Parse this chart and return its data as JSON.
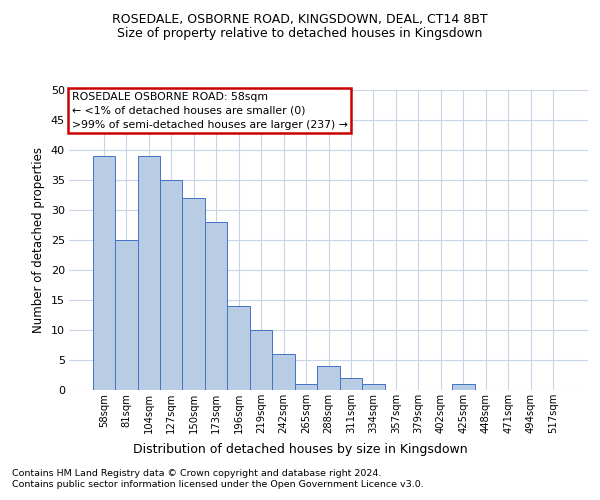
{
  "title1": "ROSEDALE, OSBORNE ROAD, KINGSDOWN, DEAL, CT14 8BT",
  "title2": "Size of property relative to detached houses in Kingsdown",
  "xlabel": "Distribution of detached houses by size in Kingsdown",
  "ylabel": "Number of detached properties",
  "categories": [
    "58sqm",
    "81sqm",
    "104sqm",
    "127sqm",
    "150sqm",
    "173sqm",
    "196sqm",
    "219sqm",
    "242sqm",
    "265sqm",
    "288sqm",
    "311sqm",
    "334sqm",
    "357sqm",
    "379sqm",
    "402sqm",
    "425sqm",
    "448sqm",
    "471sqm",
    "494sqm",
    "517sqm"
  ],
  "values": [
    39,
    25,
    39,
    35,
    32,
    28,
    14,
    10,
    6,
    1,
    4,
    2,
    1,
    0,
    0,
    0,
    1,
    0,
    0,
    0,
    0
  ],
  "bar_color": "#b8cce4",
  "bar_edge_color": "#4472c4",
  "annotation_title": "ROSEDALE OSBORNE ROAD: 58sqm",
  "annotation_line1": "← <1% of detached houses are smaller (0)",
  "annotation_line2": ">99% of semi-detached houses are larger (237) →",
  "annotation_box_color": "#cc0000",
  "ylim": [
    0,
    50
  ],
  "yticks": [
    0,
    5,
    10,
    15,
    20,
    25,
    30,
    35,
    40,
    45,
    50
  ],
  "footnote1": "Contains HM Land Registry data © Crown copyright and database right 2024.",
  "footnote2": "Contains public sector information licensed under the Open Government Licence v3.0.",
  "background_color": "#ffffff",
  "grid_color": "#c8d4e8"
}
